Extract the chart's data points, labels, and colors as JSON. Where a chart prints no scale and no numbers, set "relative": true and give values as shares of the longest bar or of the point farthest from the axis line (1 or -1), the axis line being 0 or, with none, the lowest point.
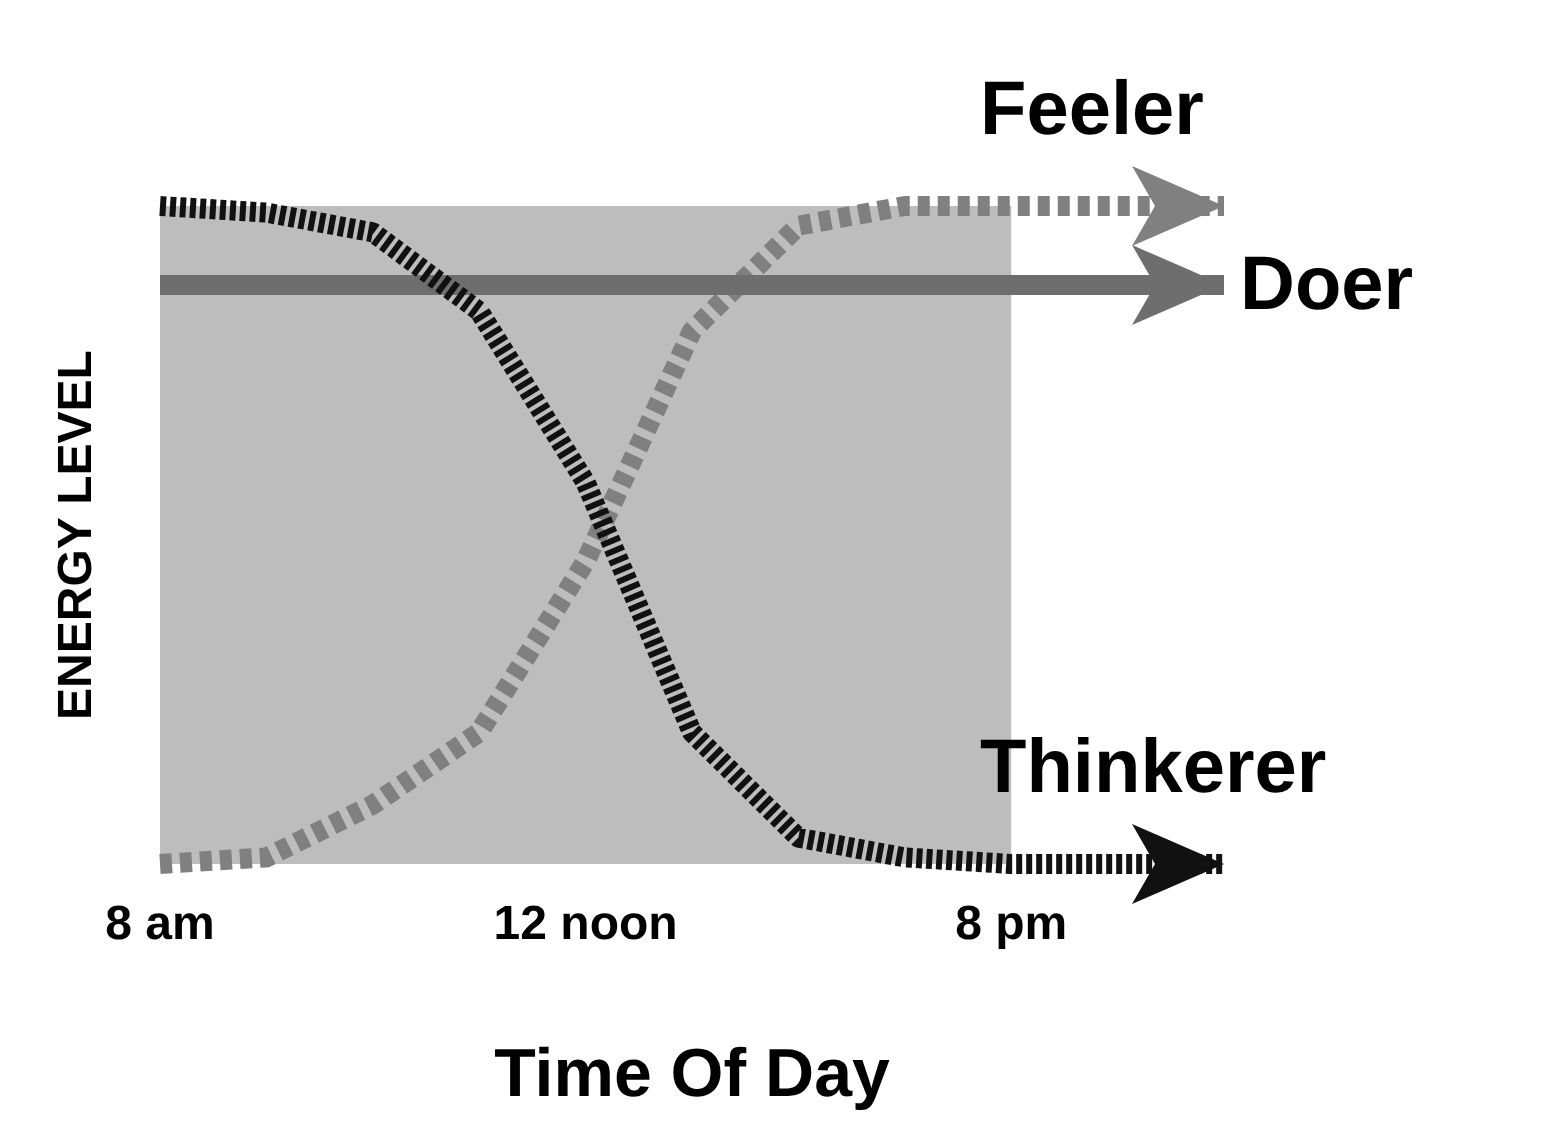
{
  "chart_data": {
    "type": "line",
    "relative": true,
    "xlabel": "Time Of Day",
    "ylabel": "ENERGY LEVEL",
    "categories": [
      "8 am",
      null,
      null,
      null,
      "12 noon",
      null,
      null,
      null,
      "8 pm",
      null,
      null
    ],
    "bands": [
      {
        "axis": "x",
        "from": "8 am",
        "to": "8 pm",
        "color": "#bdbdbd"
      }
    ],
    "series": [
      {
        "name": "Feeler",
        "color": "#808080",
        "line_style": "dashed",
        "values": [
          0,
          0.01,
          0.09,
          0.2,
          0.46,
          0.81,
          0.97,
          1,
          1,
          1,
          1
        ]
      },
      {
        "name": "Doer",
        "color": "#6e6e6e",
        "line_style": "solid",
        "values": [
          0.88,
          0.88,
          0.88,
          0.88,
          0.88,
          0.88,
          0.88,
          0.88,
          0.88,
          0.88,
          0.88
        ]
      },
      {
        "name": "Thinkerer",
        "color": "#111111",
        "line_style": "dotted",
        "values": [
          1,
          0.99,
          0.96,
          0.84,
          0.58,
          0.2,
          0.04,
          0.01,
          0,
          0,
          0
        ]
      }
    ],
    "grid": false,
    "legend": "right",
    "marker": "none"
  }
}
